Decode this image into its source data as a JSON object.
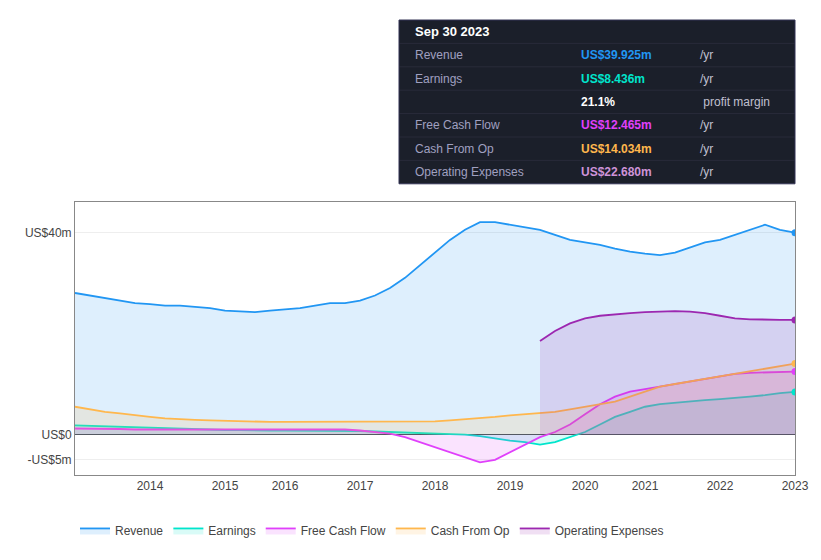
{
  "chart_data": {
    "type": "area",
    "categories": [
      null,
      null,
      null,
      null,
      null,
      "2014",
      null,
      null,
      null,
      null,
      "2015",
      null,
      null,
      null,
      "2016",
      null,
      null,
      null,
      null,
      "2017",
      null,
      null,
      null,
      null,
      "2018",
      null,
      null,
      null,
      null,
      "2019",
      null,
      null,
      null,
      null,
      "2020",
      null,
      null,
      null,
      "2021",
      null,
      null,
      null,
      null,
      "2022",
      null,
      null,
      null,
      null,
      "2023"
    ],
    "series": [
      {
        "name": "Revenue",
        "color": "#2196f3",
        "values": [
          28.0,
          27.5,
          27.0,
          26.5,
          26.0,
          25.8,
          25.5,
          25.5,
          25.2,
          25.0,
          24.5,
          24.3,
          24.2,
          24.5,
          24.8,
          25.0,
          25.5,
          26.0,
          26.0,
          26.5,
          27.5,
          29.0,
          31.0,
          33.5,
          36.0,
          38.5,
          40.5,
          42.0,
          42.0,
          41.5,
          41.0,
          40.5,
          39.5,
          38.5,
          38.0,
          37.5,
          36.8,
          36.2,
          35.8,
          35.5,
          36.0,
          37.0,
          38.0,
          38.5,
          39.5,
          40.5,
          41.5,
          40.5,
          39.925
        ]
      },
      {
        "name": "Earnings",
        "color": "#00e5cc",
        "values": [
          1.8,
          1.7,
          1.6,
          1.5,
          1.4,
          1.3,
          1.2,
          1.2,
          1.1,
          1.0,
          0.9,
          0.9,
          0.8,
          0.8,
          0.8,
          0.8,
          0.8,
          0.8,
          0.8,
          0.7,
          0.6,
          0.5,
          0.4,
          0.3,
          0.2,
          0.1,
          0.0,
          -0.3,
          -0.8,
          -1.2,
          -1.5,
          -2.0,
          -1.5,
          -0.5,
          0.5,
          2.0,
          3.5,
          4.5,
          5.5,
          6.0,
          6.3,
          6.5,
          6.8,
          7.0,
          7.2,
          7.5,
          7.8,
          8.2,
          8.436
        ]
      },
      {
        "name": "Free Cash Flow",
        "color": "#e040fb",
        "values": [
          1.2,
          1.2,
          1.1,
          1.1,
          1.0,
          1.0,
          1.0,
          1.0,
          1.0,
          0.9,
          0.9,
          0.9,
          0.9,
          0.9,
          0.9,
          1.0,
          1.0,
          1.0,
          1.0,
          0.8,
          0.5,
          0.2,
          -0.5,
          -1.5,
          -2.5,
          -3.5,
          -4.5,
          -5.5,
          -5.0,
          -3.5,
          -2.0,
          -0.5,
          0.5,
          2.0,
          4.0,
          6.0,
          7.5,
          8.5,
          9.0,
          9.5,
          10.0,
          10.5,
          11.0,
          11.5,
          12.0,
          12.2,
          12.3,
          12.4,
          12.465
        ]
      },
      {
        "name": "Cash From Op",
        "color": "#ffb74d",
        "values": [
          5.5,
          5.0,
          4.5,
          4.2,
          3.8,
          3.5,
          3.2,
          3.0,
          2.9,
          2.8,
          2.7,
          2.6,
          2.5,
          2.5,
          2.5,
          2.5,
          2.5,
          2.5,
          2.5,
          2.5,
          2.5,
          2.5,
          2.5,
          2.5,
          2.6,
          2.8,
          3.0,
          3.2,
          3.5,
          3.8,
          4.0,
          4.2,
          4.5,
          5.0,
          5.5,
          6.0,
          6.5,
          7.5,
          8.5,
          9.5,
          10.0,
          10.5,
          11.0,
          11.5,
          12.0,
          12.5,
          13.0,
          13.5,
          14.034
        ]
      },
      {
        "name": "Operating Expenses",
        "color": "#9c27b0",
        "values": [
          null,
          null,
          null,
          null,
          null,
          null,
          null,
          null,
          null,
          null,
          null,
          null,
          null,
          null,
          null,
          null,
          null,
          null,
          null,
          null,
          null,
          null,
          null,
          null,
          null,
          null,
          null,
          null,
          null,
          null,
          null,
          18.5,
          20.5,
          22.0,
          23.0,
          23.5,
          23.8,
          24.0,
          24.2,
          24.3,
          24.4,
          24.3,
          24.0,
          23.5,
          23.0,
          22.8,
          22.7,
          22.7,
          22.68
        ]
      }
    ],
    "ylim": [
      -8,
      46
    ],
    "yticks": [
      {
        "value": -5,
        "label": "-US$5m"
      },
      {
        "value": 0,
        "label": "US$0"
      },
      {
        "value": 40,
        "label": "US$40m"
      }
    ],
    "grid": true,
    "legend": "bottom",
    "annotations": [
      {
        "text": "Sep 30 2023"
      },
      {
        "label": "Revenue",
        "value": "US$39.925m",
        "unit": "/yr",
        "color": "#2196f3"
      },
      {
        "label": "Earnings",
        "value": "US$8.436m",
        "unit": "/yr",
        "color": "#00e5cc"
      },
      {
        "value": "21.1%",
        "unit": " profit margin",
        "color": "#ffffff"
      },
      {
        "label": "Free Cash Flow",
        "value": "US$12.465m",
        "unit": "/yr",
        "color": "#e040fb"
      },
      {
        "label": "Cash From Op",
        "value": "US$14.034m",
        "unit": "/yr",
        "color": "#ffb74d"
      },
      {
        "label": "Operating Expenses",
        "value": "US$22.680m",
        "unit": "/yr",
        "color": "#ce93d8"
      }
    ]
  }
}
